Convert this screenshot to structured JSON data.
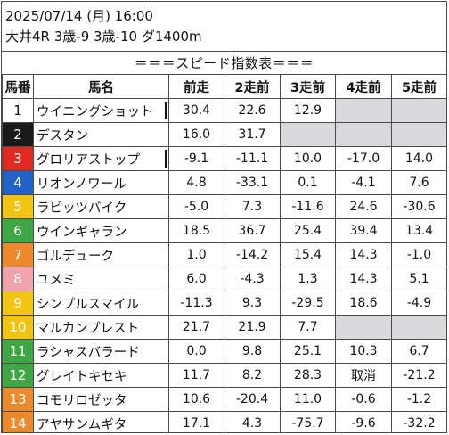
{
  "header": {
    "line1": "2025/07/14 (月) 16:00",
    "line2": "大井4R 3歳-9 3歳-10 ダ1400m"
  },
  "table_title": "＝＝＝スピード指数表＝＝＝",
  "columns": [
    "馬番",
    "馬名",
    "前走",
    "2走前",
    "3走前",
    "4走前",
    "5走前"
  ],
  "rows": [
    {
      "no": "1",
      "name": "ウイニングショット",
      "r1": "30.4",
      "r2": "22.6",
      "r3": "12.9",
      "r4": "",
      "r5": ""
    },
    {
      "no": "2",
      "name": "デスタン",
      "r1": "16.0",
      "r2": "31.7",
      "r3": "",
      "r4": "",
      "r5": ""
    },
    {
      "no": "3",
      "name": "グロリアストップ",
      "r1": "-9.1",
      "r2": "-11.1",
      "r3": "10.0",
      "r4": "-17.0",
      "r5": "14.0"
    },
    {
      "no": "4",
      "name": "リオンノワール",
      "r1": "4.8",
      "r2": "-33.1",
      "r3": "0.1",
      "r4": "-4.1",
      "r5": "7.6"
    },
    {
      "no": "5",
      "name": "ラビッツバイク",
      "r1": "-5.0",
      "r2": "7.3",
      "r3": "-11.6",
      "r4": "24.6",
      "r5": "-30.6"
    },
    {
      "no": "6",
      "name": "ウインギャラン",
      "r1": "18.5",
      "r2": "36.7",
      "r3": "25.4",
      "r4": "39.4",
      "r5": "13.4"
    },
    {
      "no": "7",
      "name": "ゴルデューク",
      "r1": "1.0",
      "r2": "-14.2",
      "r3": "15.4",
      "r4": "14.3",
      "r5": "-1.0"
    },
    {
      "no": "8",
      "name": "ユメミ",
      "r1": "6.0",
      "r2": "-4.3",
      "r3": "1.3",
      "r4": "14.3",
      "r5": "5.1"
    },
    {
      "no": "9",
      "name": "シンプルスマイル",
      "r1": "-11.3",
      "r2": "9.3",
      "r3": "-29.5",
      "r4": "18.6",
      "r5": "-4.9"
    },
    {
      "no": "10",
      "name": "マルカンプレスト",
      "r1": "21.7",
      "r2": "21.9",
      "r3": "7.7",
      "r4": "",
      "r5": ""
    },
    {
      "no": "11",
      "name": "ラシャスバラード",
      "r1": "0.0",
      "r2": "9.8",
      "r3": "25.1",
      "r4": "10.3",
      "r5": "6.7"
    },
    {
      "no": "12",
      "name": "グレイトキセキ",
      "r1": "11.7",
      "r2": "8.2",
      "r3": "28.3",
      "r4": "取消",
      "r5": "-21.2"
    },
    {
      "no": "13",
      "name": "コモリロゼッタ",
      "r1": "10.6",
      "r2": "-20.4",
      "r3": "11.0",
      "r4": "-0.6",
      "r5": "-1.2"
    },
    {
      "no": "14",
      "name": "アヤサンムギタ",
      "r1": "17.1",
      "r2": "4.3",
      "r3": "-75.7",
      "r4": "-9.6",
      "r5": "-32.2"
    }
  ],
  "gate_colors": {
    "white": "#ffffff",
    "black": "#1a1a1a",
    "red": "#e02a22",
    "blue": "#2162c9",
    "yellow": "#f1c412",
    "green": "#3ea642",
    "orange": "#ec8a2b",
    "pink": "#f1a3ad"
  },
  "empty_cell_color": "#d9d9db"
}
